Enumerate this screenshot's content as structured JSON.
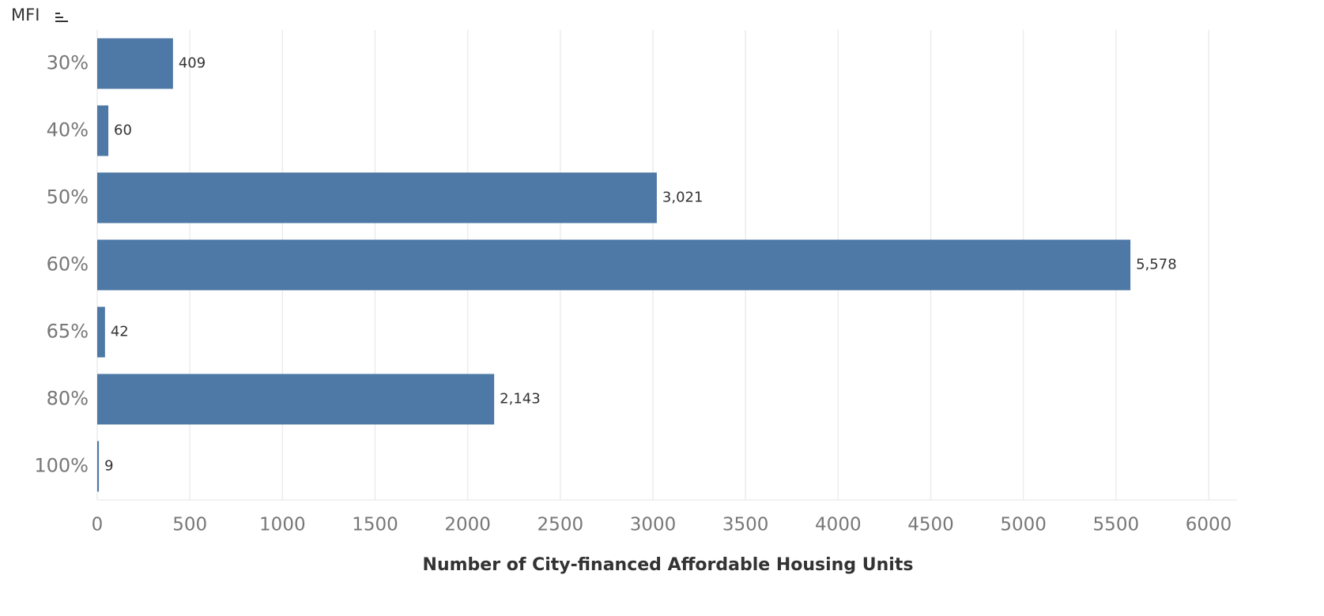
{
  "chart_data": {
    "type": "bar",
    "orientation": "horizontal",
    "y_label": "MFI",
    "x_label": "Number of City-financed Affordable Housing Units",
    "categories": [
      "30%",
      "40%",
      "50%",
      "60%",
      "65%",
      "80%",
      "100%"
    ],
    "values": [
      409,
      60,
      3021,
      5578,
      42,
      2143,
      9
    ],
    "value_labels": [
      "409",
      "60",
      "3,021",
      "5,578",
      "42",
      "2,143",
      "9"
    ],
    "color": "#4e78a6",
    "xlim": [
      0,
      6000
    ],
    "xticks": [
      0,
      500,
      1000,
      1500,
      2000,
      2500,
      3000,
      3500,
      4000,
      4500,
      5000,
      5500,
      6000
    ],
    "grid": true
  }
}
